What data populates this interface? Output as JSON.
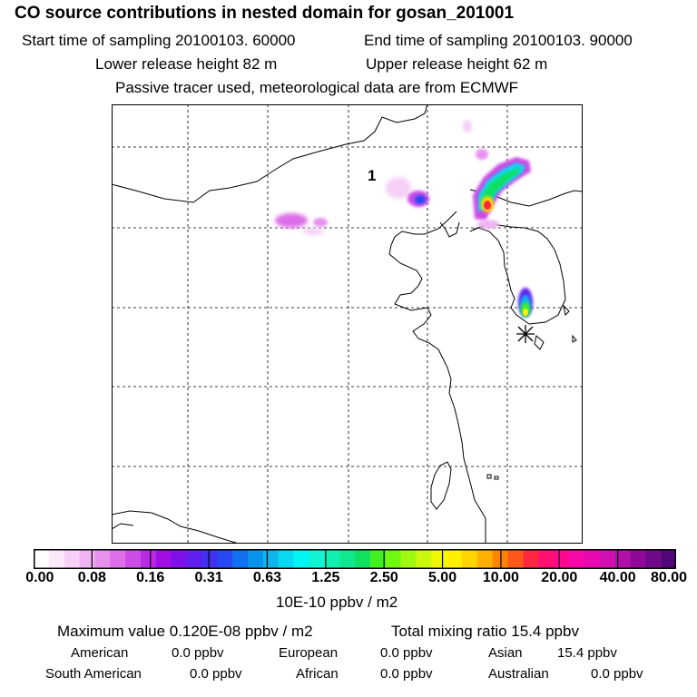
{
  "header": {
    "title": "CO  source contributions in nested domain for gosan_201001",
    "start_label": "Start time of sampling 20100103. 60000",
    "end_label": "End time of sampling 20100103. 90000",
    "lower_label": "Lower release height   82 m",
    "upper_label": "Upper release height   62 m",
    "note": "Passive tracer used, meteorological data are from ECMWF"
  },
  "map": {
    "marker_label": "1"
  },
  "colorbar": {
    "ticks": [
      "0.00",
      "0.08",
      "0.16",
      "0.31",
      "0.63",
      "1.25",
      "2.50",
      "5.00",
      "10.00",
      "20.00",
      "40.00",
      "80.00"
    ],
    "colors": [
      "#ffffff",
      "#fbe8fb",
      "#f6d0f6",
      "#f0b4f4",
      "#e890ee",
      "#dc6ee8",
      "#cc4ce6",
      "#b82ae4",
      "#a00ee4",
      "#8010e8",
      "#6020ee",
      "#4030f2",
      "#2848f4",
      "#1070f0",
      "#0894ec",
      "#10b4ec",
      "#08d8f0",
      "#00f4f4",
      "#10f4d4",
      "#10f0b0",
      "#10e890",
      "#10e060",
      "#40f020",
      "#70f810",
      "#a0f810",
      "#ccf810",
      "#f0f800",
      "#fff000",
      "#ffd400",
      "#ffb000",
      "#ff8400",
      "#ff5818",
      "#ff2840",
      "#ff1070",
      "#ff0890",
      "#f808a8",
      "#e808b0",
      "#d010b0",
      "#b010a8",
      "#900898",
      "#70088a",
      "#500878"
    ],
    "units": "10E-10 ppbv / m2"
  },
  "stats": {
    "max_label": "Maximum value  0.120E-08 ppbv / m2",
    "total_label": "Total mixing ratio       15.4 ppbv"
  },
  "regions": [
    {
      "name": "American",
      "value": "0.0 ppbv"
    },
    {
      "name": "European",
      "value": "0.0 ppbv"
    },
    {
      "name": "Asian",
      "value": "15.4 ppbv"
    },
    {
      "name": "South American",
      "value": "0.0 ppbv"
    },
    {
      "name": "African",
      "value": "0.0 ppbv"
    },
    {
      "name": "Australian",
      "value": "0.0 ppbv"
    }
  ]
}
